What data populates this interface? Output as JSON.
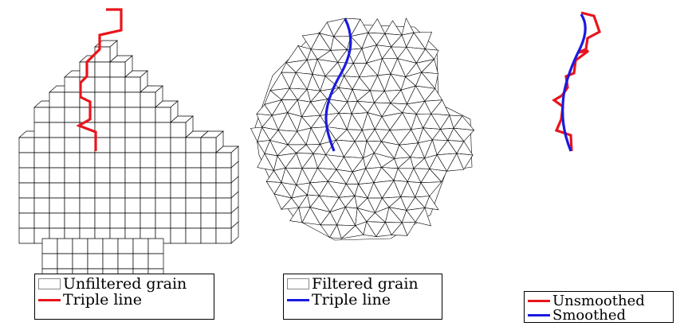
{
  "panels": [
    {
      "name": "unfiltered",
      "legend": [
        {
          "label": "Unfiltered grain",
          "swatch": "box"
        },
        {
          "label": "Triple line",
          "swatch": "line",
          "color": "#e8141c"
        }
      ]
    },
    {
      "name": "filtered",
      "legend": [
        {
          "label": "Filtered grain",
          "swatch": "box"
        },
        {
          "label": "Triple line",
          "swatch": "line",
          "color": "#1a1ae0"
        }
      ]
    },
    {
      "name": "comparison",
      "legend": [
        {
          "label": "Unsmoothed",
          "swatch": "line",
          "color": "#e8141c"
        },
        {
          "label": "Smoothed",
          "swatch": "line",
          "color": "#1a1ae0"
        }
      ]
    }
  ],
  "colors": {
    "mesh": "#000000",
    "red": "#e8141c",
    "blue": "#1a1ae0"
  }
}
